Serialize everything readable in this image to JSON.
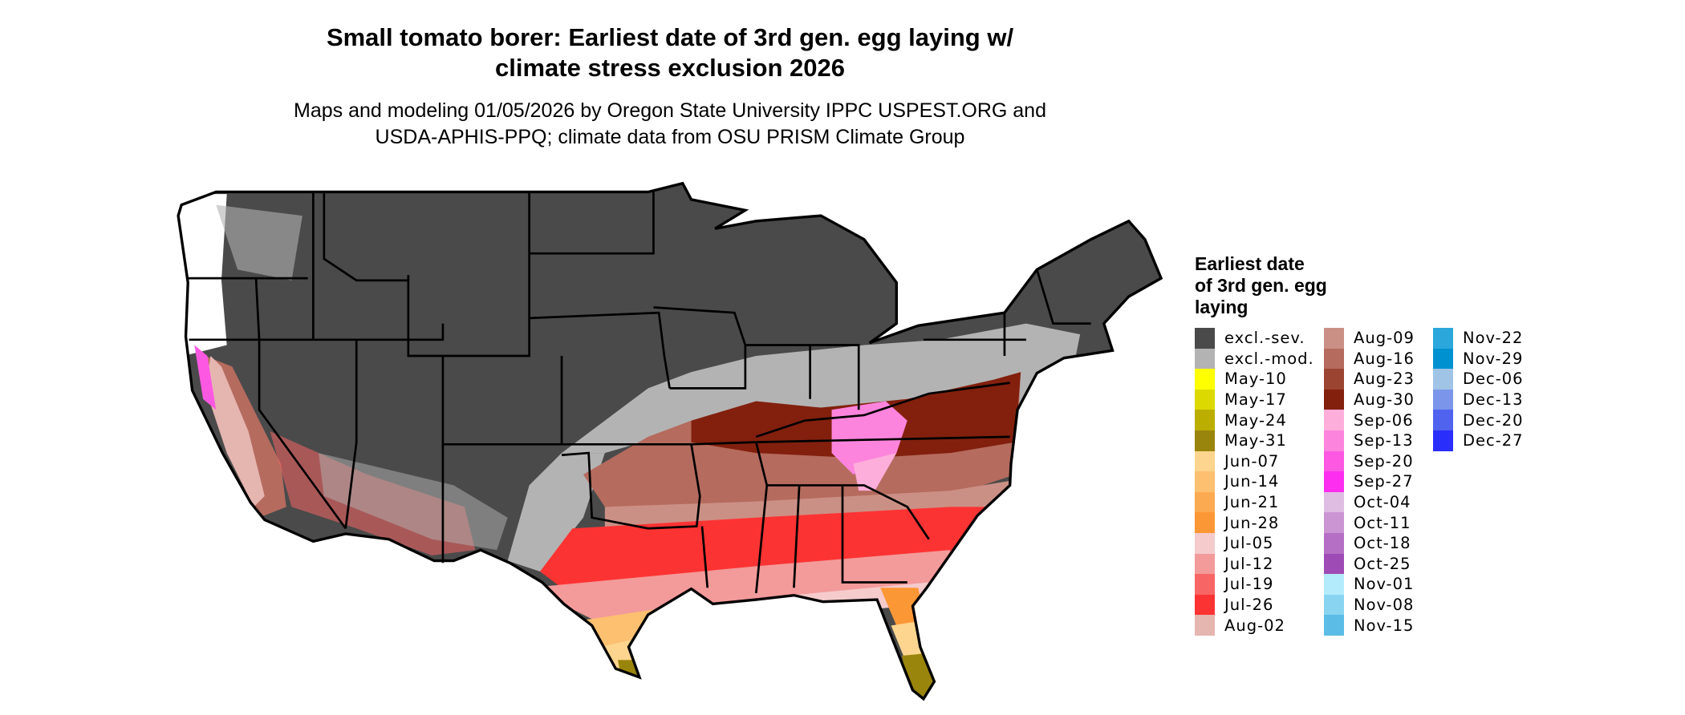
{
  "title": {
    "line1": "Small tomato borer: Earliest date of 3rd gen. egg laying w/",
    "line2": "climate stress exclusion 2026"
  },
  "subtitle": {
    "line1": "Maps and modeling 01/05/2026 by Oregon State University IPPC USPEST.ORG and",
    "line2": "USDA-APHIS-PPQ; climate data from OSU PRISM Climate Group"
  },
  "legend": {
    "title_lines": [
      "Earliest date",
      "of 3rd gen. egg",
      "laying"
    ],
    "columns": [
      [
        {
          "label": "excl.-sev.",
          "color": "#4a4a4a"
        },
        {
          "label": "excl.-mod.",
          "color": "#b3b3b3"
        },
        {
          "label": "May-10",
          "color": "#ffff00"
        },
        {
          "label": "May-17",
          "color": "#dcd900"
        },
        {
          "label": "May-24",
          "color": "#bcae00"
        },
        {
          "label": "May-31",
          "color": "#9a850c"
        },
        {
          "label": "Jun-07",
          "color": "#fdd58f"
        },
        {
          "label": "Jun-14",
          "color": "#fdc070"
        },
        {
          "label": "Jun-21",
          "color": "#fcaa52"
        },
        {
          "label": "Jun-28",
          "color": "#fc9736"
        },
        {
          "label": "Jul-05",
          "color": "#f5cbcc"
        },
        {
          "label": "Jul-12",
          "color": "#f39a9a"
        },
        {
          "label": "Jul-19",
          "color": "#f76565"
        },
        {
          "label": "Jul-26",
          "color": "#fc3333"
        },
        {
          "label": "Aug-02",
          "color": "#e5b5b0"
        }
      ],
      [
        {
          "label": "Aug-09",
          "color": "#cb9085"
        },
        {
          "label": "Aug-16",
          "color": "#b56b5e"
        },
        {
          "label": "Aug-23",
          "color": "#9c4432"
        },
        {
          "label": "Aug-30",
          "color": "#82200d"
        },
        {
          "label": "Sep-06",
          "color": "#fdaedb"
        },
        {
          "label": "Sep-13",
          "color": "#fd84dd"
        },
        {
          "label": "Sep-20",
          "color": "#fd58e2"
        },
        {
          "label": "Sep-27",
          "color": "#fd2ef0"
        },
        {
          "label": "Oct-04",
          "color": "#dfbde3"
        },
        {
          "label": "Oct-11",
          "color": "#cb95d3"
        },
        {
          "label": "Oct-18",
          "color": "#b56fc4"
        },
        {
          "label": "Oct-25",
          "color": "#9e4bb6"
        },
        {
          "label": "Nov-01",
          "color": "#b3ebfd"
        },
        {
          "label": "Nov-08",
          "color": "#89d4f1"
        },
        {
          "label": "Nov-15",
          "color": "#5bbde5"
        }
      ],
      [
        {
          "label": "Nov-22",
          "color": "#2ba7db"
        },
        {
          "label": "Nov-29",
          "color": "#0091d0"
        },
        {
          "label": "Dec-06",
          "color": "#a0c4e6"
        },
        {
          "label": "Dec-13",
          "color": "#7a95ea"
        },
        {
          "label": "Dec-20",
          "color": "#5063ef"
        },
        {
          "label": "Dec-27",
          "color": "#2a2efa"
        }
      ]
    ]
  }
}
